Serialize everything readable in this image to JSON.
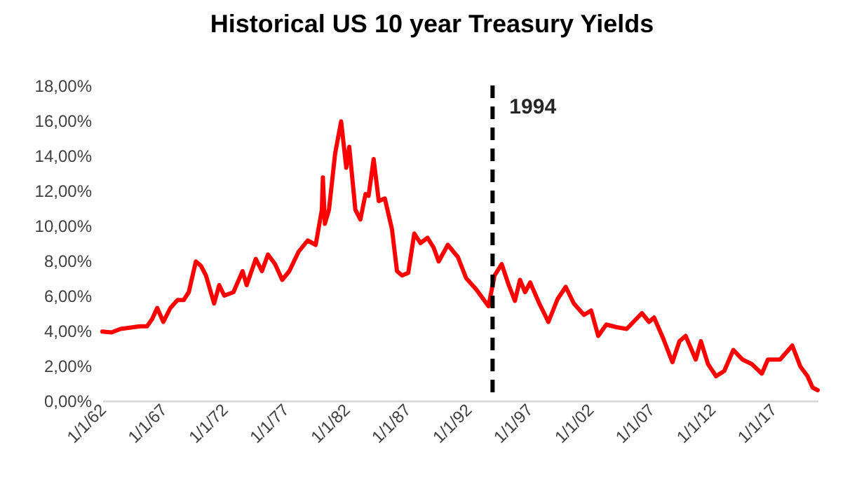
{
  "chart_data": {
    "type": "line",
    "title": "Historical US 10 year Treasury Yields",
    "x": [
      "1962-01",
      "1962-10",
      "1963-07",
      "1965-02",
      "1965-09",
      "1966-02",
      "1966-07",
      "1967-01",
      "1967-08",
      "1968-03",
      "1968-09",
      "1969-02",
      "1969-09",
      "1970-02",
      "1970-07",
      "1971-03",
      "1971-08",
      "1972-01",
      "1972-10",
      "1973-07",
      "1973-11",
      "1974-08",
      "1975-02",
      "1975-08",
      "1976-03",
      "1976-10",
      "1977-05",
      "1978-02",
      "1978-11",
      "1979-07",
      "1980-01",
      "1980-02",
      "1980-04",
      "1980-08",
      "1981-02",
      "1981-08",
      "1982-01",
      "1982-04",
      "1982-10",
      "1983-03",
      "1983-08",
      "1983-11",
      "1984-04",
      "1984-09",
      "1985-03",
      "1985-10",
      "1986-03",
      "1986-08",
      "1987-02",
      "1987-08",
      "1988-02",
      "1988-09",
      "1989-03",
      "1989-08",
      "1990-05",
      "1991-03",
      "1991-11",
      "1992-09",
      "1993-09",
      "1994-03",
      "1994-10",
      "1995-05",
      "1995-11",
      "1996-04",
      "1996-09",
      "1997-02",
      "1997-11",
      "1998-08",
      "1999-05",
      "2000-01",
      "2000-09",
      "2001-07",
      "2002-02",
      "2002-09",
      "2003-05",
      "2004-03",
      "2005-01",
      "2006-04",
      "2006-11",
      "2007-04",
      "2008-01",
      "2008-10",
      "2009-05",
      "2009-11",
      "2010-09",
      "2011-02",
      "2011-09",
      "2012-05",
      "2013-01",
      "2013-10",
      "2014-07",
      "2015-04",
      "2016-02",
      "2016-08",
      "2017-08",
      "2018-08",
      "2019-04",
      "2019-11",
      "2020-04",
      "2020-09"
    ],
    "series": [
      {
        "color": "#ff0000",
        "values": [
          3.95,
          3.9,
          4.1,
          4.25,
          4.25,
          4.67,
          5.3,
          4.5,
          5.3,
          5.75,
          5.75,
          6.2,
          7.95,
          7.7,
          7.15,
          5.55,
          6.6,
          6.0,
          6.2,
          7.4,
          6.6,
          8.1,
          7.4,
          8.35,
          7.8,
          6.9,
          7.4,
          8.5,
          9.15,
          8.9,
          10.9,
          12.75,
          10.1,
          10.9,
          14.1,
          15.95,
          13.3,
          14.5,
          10.9,
          10.35,
          11.8,
          11.7,
          13.8,
          11.4,
          11.55,
          9.8,
          7.4,
          7.15,
          7.3,
          9.55,
          9.0,
          9.3,
          8.75,
          7.95,
          8.9,
          8.2,
          7.0,
          6.35,
          5.4,
          7.15,
          7.8,
          6.6,
          5.7,
          6.9,
          6.2,
          6.75,
          5.55,
          4.5,
          5.8,
          6.5,
          5.55,
          4.9,
          5.15,
          3.7,
          4.35,
          4.2,
          4.1,
          5.0,
          4.5,
          4.75,
          3.55,
          2.2,
          3.4,
          3.7,
          2.35,
          3.4,
          2.1,
          1.4,
          1.7,
          2.9,
          2.35,
          2.1,
          1.55,
          2.35,
          2.35,
          3.15,
          1.95,
          1.4,
          0.75,
          0.6
        ]
      }
    ],
    "xlim": [
      "1962-01",
      "2020-09"
    ],
    "xticks": [
      {
        "value": "1962-01-01",
        "label": "1/1/62"
      },
      {
        "value": "1967-01-01",
        "label": "1/1/67"
      },
      {
        "value": "1972-01-01",
        "label": "1/1/72"
      },
      {
        "value": "1977-01-01",
        "label": "1/1/77"
      },
      {
        "value": "1982-01-01",
        "label": "1/1/82"
      },
      {
        "value": "1987-01-01",
        "label": "1/1/87"
      },
      {
        "value": "1992-01-01",
        "label": "1/1/92"
      },
      {
        "value": "1997-01-01",
        "label": "1/1/97"
      },
      {
        "value": "2002-01-01",
        "label": "1/1/02"
      },
      {
        "value": "2007-01-01",
        "label": "1/1/07"
      },
      {
        "value": "2012-01-01",
        "label": "1/1/12"
      },
      {
        "value": "2017-01-01",
        "label": "1/1/17"
      }
    ],
    "ylim": [
      0,
      18
    ],
    "yticks": [
      {
        "value": 0,
        "label": "0,00%"
      },
      {
        "value": 2,
        "label": "2,00%"
      },
      {
        "value": 4,
        "label": "4,00%"
      },
      {
        "value": 6,
        "label": "6,00%"
      },
      {
        "value": 8,
        "label": "8,00%"
      },
      {
        "value": 10,
        "label": "10,00%"
      },
      {
        "value": 12,
        "label": "12,00%"
      },
      {
        "value": 14,
        "label": "14,00%"
      },
      {
        "value": 16,
        "label": "16,00%"
      },
      {
        "value": 18,
        "label": "18,00%"
      }
    ],
    "ref_lines": [
      {
        "axis": "x",
        "value": "1994-01",
        "label": "1994",
        "color": "#000000",
        "line_style": "dashed"
      }
    ],
    "grid": false,
    "marker": "none",
    "line_style": "solid"
  }
}
